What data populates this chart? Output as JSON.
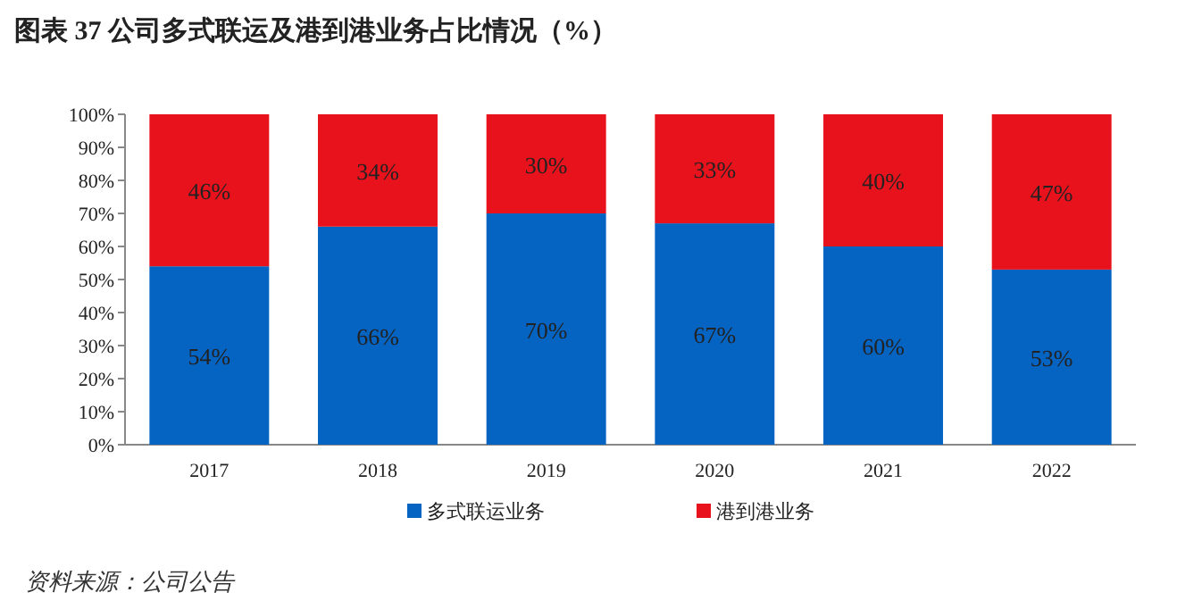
{
  "chart_data": {
    "type": "bar",
    "title": "图表 37 公司多式联运及港到港业务占比情况（%）",
    "categories": [
      "2017",
      "2018",
      "2019",
      "2020",
      "2021",
      "2022"
    ],
    "stacked": true,
    "legend": "bottom",
    "grid": false,
    "ylim": [
      0,
      100
    ],
    "yticks": [
      {
        "value": 0,
        "label": "0%"
      },
      {
        "value": 10,
        "label": "10%"
      },
      {
        "value": 20,
        "label": "20%"
      },
      {
        "value": 30,
        "label": "30%"
      },
      {
        "value": 40,
        "label": "40%"
      },
      {
        "value": 50,
        "label": "50%"
      },
      {
        "value": 60,
        "label": "60%"
      },
      {
        "value": 70,
        "label": "70%"
      },
      {
        "value": 80,
        "label": "80%"
      },
      {
        "value": 90,
        "label": "90%"
      },
      {
        "value": 100,
        "label": "100%"
      }
    ],
    "series": [
      {
        "name": "多式联运业务",
        "color": "#0563c1",
        "values": [
          54,
          66,
          70,
          67,
          60,
          53
        ],
        "value_labels": [
          "54%",
          "66%",
          "70%",
          "67%",
          "60%",
          "53%"
        ]
      },
      {
        "name": "港到港业务",
        "color": "#e8121c",
        "values": [
          46,
          34,
          30,
          33,
          40,
          47
        ],
        "value_labels": [
          "46%",
          "34%",
          "30%",
          "33%",
          "40%",
          "47%"
        ]
      }
    ],
    "annotations": [
      "资料来源：公司公告"
    ]
  }
}
